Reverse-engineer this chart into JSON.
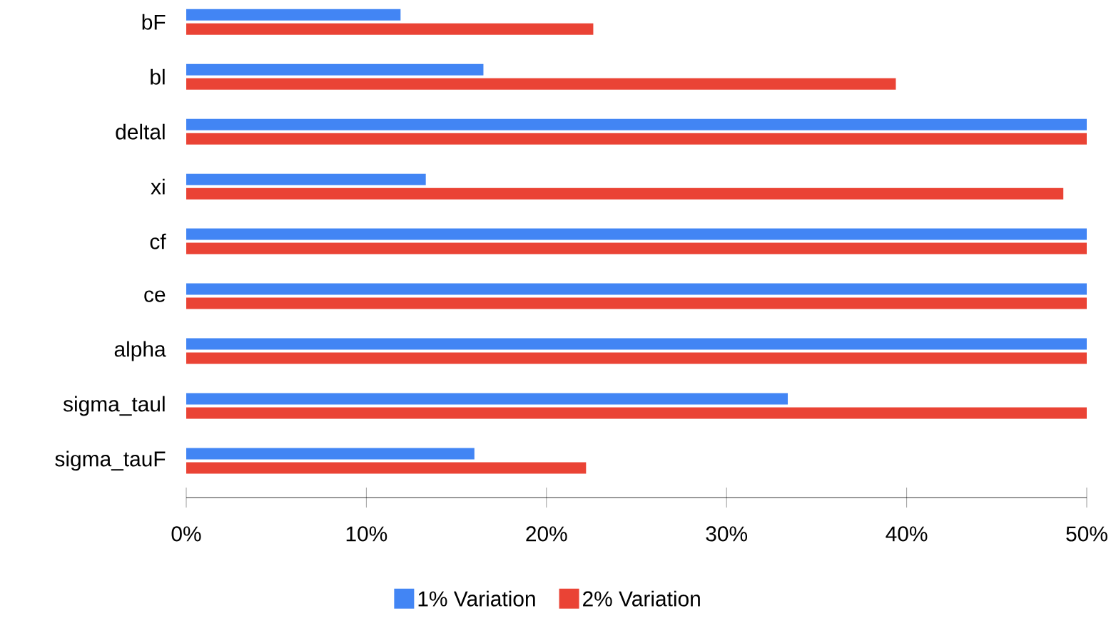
{
  "chart_data": {
    "type": "bar",
    "orientation": "horizontal",
    "categories": [
      "bF",
      "bl",
      "deltal",
      "xi",
      "cf",
      "ce",
      "alpha",
      "sigma_taul",
      "sigma_tauF"
    ],
    "series": [
      {
        "name": "1% Variation",
        "color": "#4285f4",
        "values": [
          11.9,
          16.5,
          50,
          13.3,
          50,
          50,
          50,
          33.4,
          16.0
        ]
      },
      {
        "name": "2% Variation",
        "color": "#ea4335",
        "values": [
          22.6,
          39.4,
          50,
          48.7,
          50,
          50,
          50,
          50,
          22.2
        ]
      }
    ],
    "xlim": [
      0,
      50
    ],
    "xticks": [
      {
        "value": 0,
        "label": "0%"
      },
      {
        "value": 10,
        "label": "10%"
      },
      {
        "value": 20,
        "label": "20%"
      },
      {
        "value": 30,
        "label": "30%"
      },
      {
        "value": 40,
        "label": "40%"
      },
      {
        "value": 50,
        "label": "50%"
      }
    ],
    "grid": false,
    "legend": "bottom"
  }
}
